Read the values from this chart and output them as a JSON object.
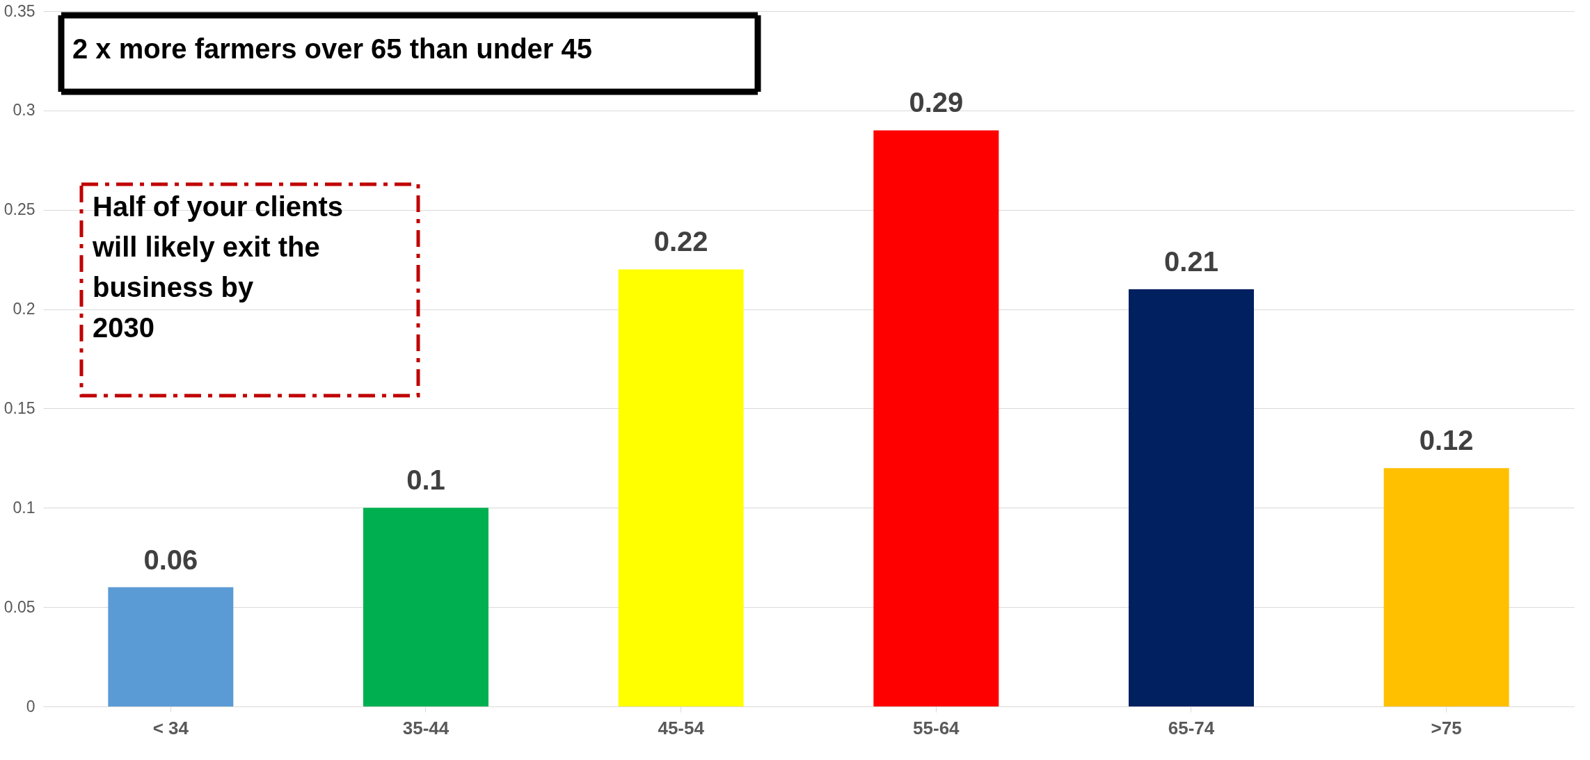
{
  "chart_data": {
    "type": "bar",
    "categories": [
      "< 34",
      "35-44",
      "45-54",
      "55-64",
      "65-74",
      ">75"
    ],
    "values": [
      0.06,
      0.1,
      0.22,
      0.29,
      0.21,
      0.12
    ],
    "colors": [
      "#5b9bd5",
      "#00b050",
      "#ffff00",
      "#ff0000",
      "#002060",
      "#ffc000"
    ],
    "ylim": [
      0,
      0.35
    ],
    "yticks": [
      0,
      0.05,
      0.1,
      0.15,
      0.2,
      0.25,
      0.3,
      0.35
    ],
    "grid": "y",
    "data_labels": true,
    "annotations": [
      "2 x more farmers over 65 than under 45",
      "Half of your clients\nwill likely exit the\nbusiness by\n2030"
    ]
  }
}
